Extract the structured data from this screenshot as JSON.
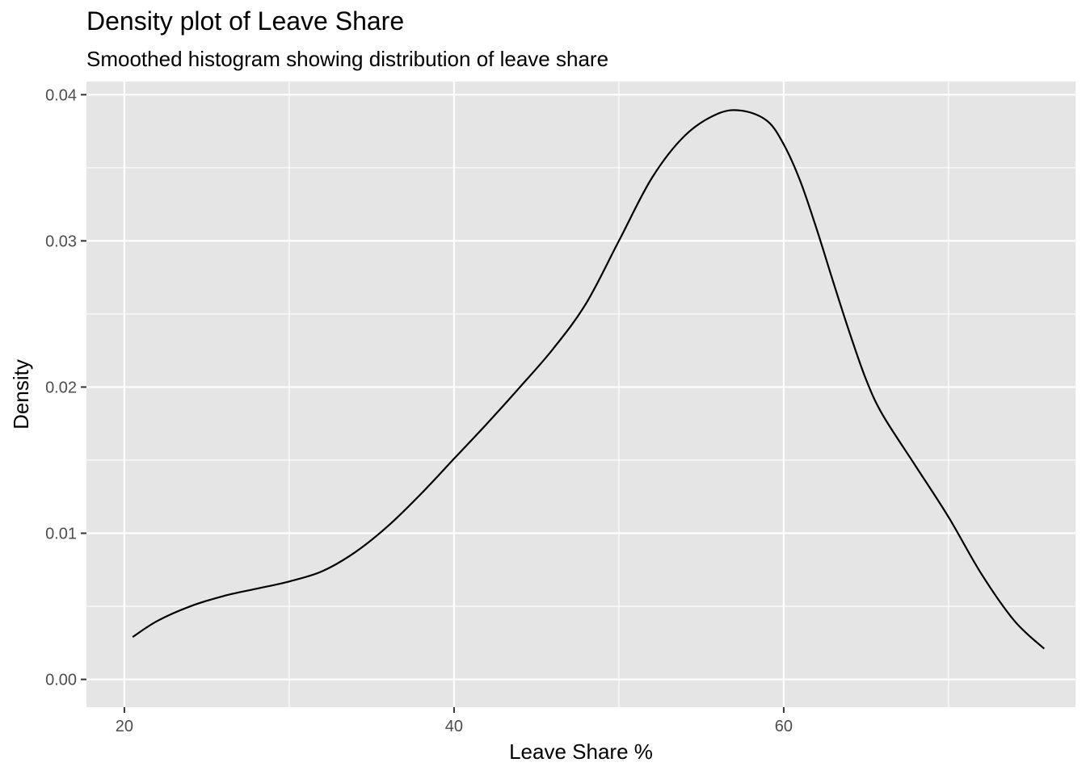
{
  "chart_data": {
    "type": "area",
    "title": "Density plot of Leave Share",
    "subtitle": "Smoothed histogram showing distribution of leave share",
    "xlabel": "Leave Share %",
    "ylabel": "Density",
    "xlim": [
      17.7,
      77.7
    ],
    "ylim": [
      -0.0019,
      0.0409
    ],
    "x_ticks": [
      20,
      40,
      60
    ],
    "x_minor_ticks": [
      30,
      50,
      70
    ],
    "y_ticks": [
      0.0,
      0.01,
      0.02,
      0.03,
      0.04
    ],
    "y_tick_labels": [
      "0.00",
      "0.01",
      "0.02",
      "0.03",
      "0.04"
    ],
    "y_minor_ticks": [
      0.005,
      0.015,
      0.025,
      0.035
    ],
    "grid": true,
    "series": [
      {
        "x": [
          20.5,
          22,
          24,
          26,
          28,
          30,
          32,
          34,
          36,
          38,
          40,
          42,
          44,
          46,
          48,
          50,
          52,
          54,
          56,
          57.5,
          59,
          60,
          61,
          62,
          63,
          64,
          65,
          66,
          68,
          70,
          72,
          74,
          75.8
        ],
        "y": [
          0.0029,
          0.004,
          0.005,
          0.0057,
          0.0062,
          0.0067,
          0.0074,
          0.0087,
          0.0105,
          0.0127,
          0.0151,
          0.0175,
          0.02,
          0.0226,
          0.0257,
          0.03,
          0.0343,
          0.0372,
          0.0387,
          0.0389,
          0.0382,
          0.0366,
          0.0341,
          0.0308,
          0.0272,
          0.0237,
          0.0205,
          0.0181,
          0.0146,
          0.0111,
          0.0072,
          0.004,
          0.0021
        ],
        "color": "#000000"
      }
    ],
    "colors": {
      "panel": "#e5e5e5",
      "grid": "#ffffff",
      "line": "#000000"
    }
  }
}
